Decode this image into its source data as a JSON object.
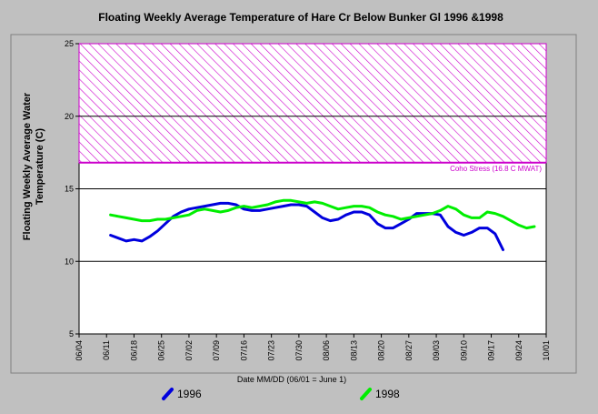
{
  "chart_data": {
    "type": "line",
    "title": "Floating Weekly Average Temperature of Hare Cr Below Bunker Gl 1996 &1998",
    "xlabel": "Date MM/DD (06/01 = June 1)",
    "ylabel_lines": [
      "Floating Weekly Average Water",
      "Temperature (C)"
    ],
    "ylim": [
      5,
      25
    ],
    "yticks": [
      5,
      10,
      15,
      20,
      25
    ],
    "xlim": [
      3,
      122
    ],
    "xticks": [
      {
        "day": 3,
        "label": "06/04"
      },
      {
        "day": 10,
        "label": "06/11"
      },
      {
        "day": 17,
        "label": "06/18"
      },
      {
        "day": 24,
        "label": "06/25"
      },
      {
        "day": 31,
        "label": "07/02"
      },
      {
        "day": 38,
        "label": "07/09"
      },
      {
        "day": 45,
        "label": "07/16"
      },
      {
        "day": 52,
        "label": "07/23"
      },
      {
        "day": 59,
        "label": "07/30"
      },
      {
        "day": 66,
        "label": "08/06"
      },
      {
        "day": 73,
        "label": "08/13"
      },
      {
        "day": 80,
        "label": "08/20"
      },
      {
        "day": 87,
        "label": "08/27"
      },
      {
        "day": 94,
        "label": "09/03"
      },
      {
        "day": 101,
        "label": "09/10"
      },
      {
        "day": 108,
        "label": "09/17"
      },
      {
        "day": 115,
        "label": "09/24"
      },
      {
        "day": 122,
        "label": "10/01"
      }
    ],
    "grid_y": true,
    "stress_band": {
      "from": 16.8,
      "to": 25,
      "label": "Coho Stress (16.8 C MWAT)",
      "color": "#cc00cc"
    },
    "series": [
      {
        "name": "1996",
        "color": "#0000dd",
        "x": [
          11,
          13,
          15,
          17,
          19,
          21,
          23,
          25,
          27,
          29,
          31,
          33,
          35,
          37,
          39,
          41,
          43,
          45,
          47,
          49,
          51,
          53,
          55,
          57,
          59,
          61,
          63,
          65,
          67,
          69,
          71,
          73,
          75,
          77,
          79,
          81,
          83,
          85,
          87,
          89,
          91,
          93,
          95,
          97,
          99,
          101,
          103,
          105,
          107,
          109,
          111
        ],
        "y": [
          11.8,
          11.6,
          11.4,
          11.5,
          11.4,
          11.7,
          12.1,
          12.6,
          13.1,
          13.4,
          13.6,
          13.7,
          13.8,
          13.9,
          14.0,
          14.0,
          13.9,
          13.6,
          13.5,
          13.5,
          13.6,
          13.7,
          13.8,
          13.9,
          13.9,
          13.8,
          13.4,
          13.0,
          12.8,
          12.9,
          13.2,
          13.4,
          13.4,
          13.2,
          12.6,
          12.3,
          12.3,
          12.6,
          12.9,
          13.3,
          13.3,
          13.3,
          13.2,
          12.4,
          12.0,
          11.8,
          12.0,
          12.3,
          12.3,
          11.9,
          10.8
        ]
      },
      {
        "name": "1998",
        "color": "#00ee00",
        "x": [
          11,
          13,
          15,
          17,
          19,
          21,
          23,
          25,
          27,
          29,
          31,
          33,
          35,
          37,
          39,
          41,
          43,
          45,
          47,
          49,
          51,
          53,
          55,
          57,
          59,
          61,
          63,
          65,
          67,
          69,
          71,
          73,
          75,
          77,
          79,
          81,
          83,
          85,
          87,
          89,
          91,
          93,
          95,
          97,
          99,
          101,
          103,
          105,
          107,
          109,
          111,
          113,
          115,
          117,
          119
        ],
        "y": [
          13.2,
          13.1,
          13.0,
          12.9,
          12.8,
          12.8,
          12.9,
          12.9,
          13.0,
          13.1,
          13.2,
          13.5,
          13.6,
          13.5,
          13.4,
          13.5,
          13.7,
          13.8,
          13.7,
          13.8,
          13.9,
          14.1,
          14.2,
          14.2,
          14.1,
          14.0,
          14.1,
          14.0,
          13.8,
          13.6,
          13.7,
          13.8,
          13.8,
          13.7,
          13.4,
          13.2,
          13.1,
          12.9,
          13.0,
          13.1,
          13.2,
          13.3,
          13.5,
          13.8,
          13.6,
          13.2,
          13.0,
          13.0,
          13.4,
          13.3,
          13.1,
          12.8,
          12.5,
          12.3,
          12.4
        ]
      }
    ],
    "legend": {
      "placement": "bottom"
    }
  }
}
